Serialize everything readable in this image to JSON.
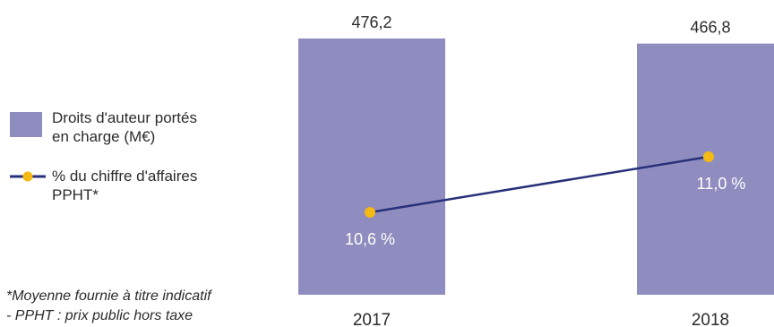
{
  "chart_data": {
    "type": "bar",
    "categories": [
      "2017",
      "2018"
    ],
    "series": [
      {
        "name": "Droits d'auteur portés en charge (M€)",
        "kind": "bar",
        "values": [
          476.2,
          466.8
        ],
        "labels": [
          "476,2",
          "466,8"
        ],
        "color": "#8f8cbf"
      },
      {
        "name": "% du chiffre d'affaires PPHT*",
        "kind": "line",
        "values": [
          10.6,
          11.0
        ],
        "labels": [
          "10,6 %",
          "11,0 %"
        ],
        "line_color": "#27307a",
        "marker_color": "#f5b915"
      }
    ],
    "legend": {
      "bar_label_line1": "Droits d'auteur portés",
      "bar_label_line2": "en charge (M€)",
      "line_label_line1": "% du chiffre d'affaires",
      "line_label_line2": "PPHT*",
      "position": "left"
    },
    "footnote": {
      "line1": "*Moyenne fournie à titre indicatif",
      "line2": "- PPHT : prix public hors taxe"
    },
    "grid": false
  }
}
